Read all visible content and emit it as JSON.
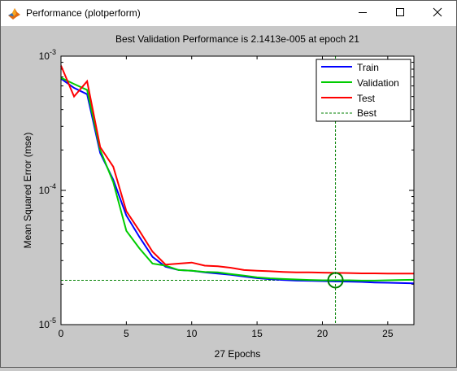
{
  "window": {
    "title": "Performance (plotperform)",
    "icons": {
      "app": "matlab-icon",
      "minimize": "minimize-icon",
      "maximize": "maximize-icon",
      "close": "close-icon"
    }
  },
  "colors": {
    "train": "#0000ff",
    "validation": "#00cc00",
    "test": "#ff0000",
    "best": "#008000",
    "background": "#c8c8c8"
  },
  "chart_data": {
    "type": "line",
    "title": "Best Validation Performance is 2.1413e-005 at epoch 21",
    "xlabel": "27 Epochs",
    "ylabel": "Mean Squared Error  (mse)",
    "yscale": "log",
    "xlim": [
      0,
      27
    ],
    "ylim": [
      1e-05,
      0.001
    ],
    "xticks": [
      0,
      5,
      10,
      15,
      20,
      25
    ],
    "yticks": [
      {
        "base": "10",
        "exp": "-5"
      },
      {
        "base": "10",
        "exp": "-4"
      },
      {
        "base": "10",
        "exp": "-3"
      }
    ],
    "legend_position": "top-right",
    "x": [
      0,
      1,
      2,
      3,
      4,
      5,
      6,
      7,
      8,
      9,
      10,
      11,
      12,
      13,
      14,
      15,
      16,
      17,
      18,
      19,
      20,
      21,
      22,
      23,
      24,
      25,
      26,
      27
    ],
    "series": [
      {
        "name": "Train",
        "color_key": "train",
        "values": [
          0.00068,
          0.00058,
          0.00052,
          0.00019,
          0.00012,
          6.5e-05,
          4.5e-05,
          3.2e-05,
          2.7e-05,
          2.55e-05,
          2.52e-05,
          2.45e-05,
          2.4e-05,
          2.35e-05,
          2.28e-05,
          2.22e-05,
          2.18e-05,
          2.15e-05,
          2.13e-05,
          2.12e-05,
          2.11e-05,
          2.1e-05,
          2.09e-05,
          2.08e-05,
          2.06e-05,
          2.05e-05,
          2.04e-05,
          2.03e-05
        ]
      },
      {
        "name": "Validation",
        "color_key": "validation",
        "values": [
          0.00069,
          0.00062,
          0.00056,
          0.0002,
          0.000115,
          5e-05,
          3.7e-05,
          2.85e-05,
          2.75e-05,
          2.55e-05,
          2.52e-05,
          2.47e-05,
          2.45e-05,
          2.38e-05,
          2.32e-05,
          2.25e-05,
          2.21e-05,
          2.19e-05,
          2.17e-05,
          2.15e-05,
          2.14e-05,
          2.14e-05,
          2.14e-05,
          2.13e-05,
          2.13e-05,
          2.14e-05,
          2.15e-05,
          2.16e-05
        ]
      },
      {
        "name": "Test",
        "color_key": "test",
        "values": [
          0.00085,
          0.0005,
          0.00065,
          0.00021,
          0.00015,
          7e-05,
          5e-05,
          3.5e-05,
          2.8e-05,
          2.85e-05,
          2.9e-05,
          2.75e-05,
          2.72e-05,
          2.65e-05,
          2.55e-05,
          2.52e-05,
          2.5e-05,
          2.47e-05,
          2.45e-05,
          2.45e-05,
          2.44e-05,
          2.43e-05,
          2.42e-05,
          2.41e-05,
          2.41e-05,
          2.4e-05,
          2.4e-05,
          2.4e-05
        ]
      }
    ],
    "best": {
      "name": "Best",
      "epoch": 21,
      "value": 2.1413e-05
    }
  }
}
